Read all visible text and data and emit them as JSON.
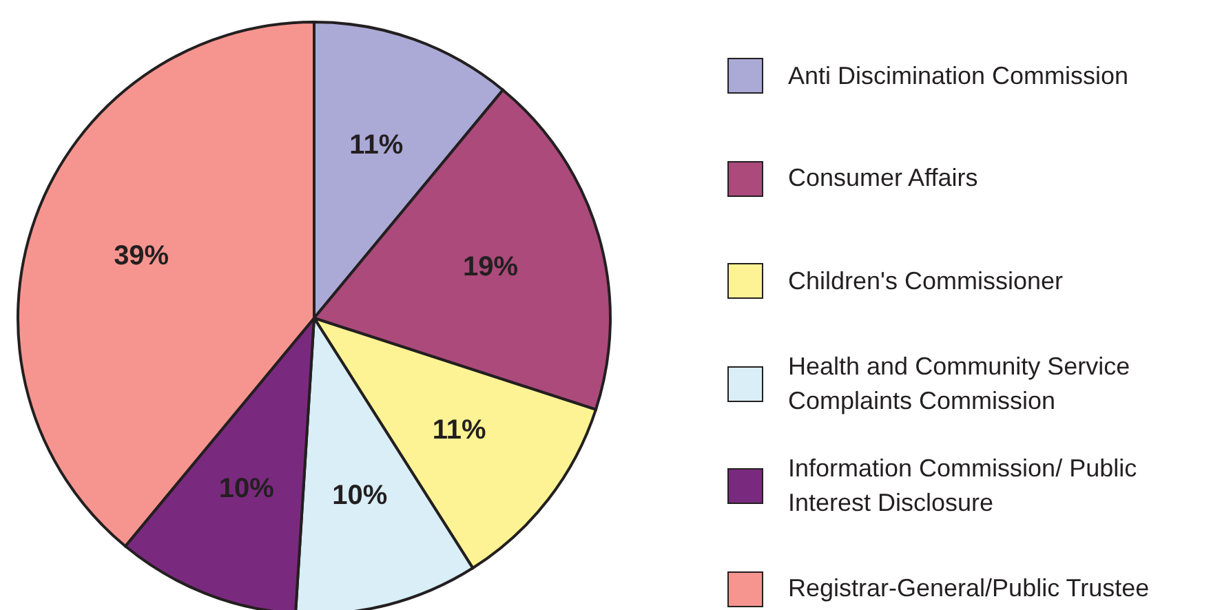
{
  "chart_data": {
    "type": "pie",
    "categories": [
      "Anti Discimination Commission",
      "Consumer Affairs",
      "Children's Commissioner",
      "Health and Community Service Complaints Commission",
      "Information Commission/ Public Interest Disclosure",
      "Registrar-General/Public Trustee"
    ],
    "values": [
      11,
      19,
      11,
      10,
      10,
      39
    ],
    "value_labels": [
      "11%",
      "19%",
      "11%",
      "10%",
      "10%",
      "39%"
    ],
    "colors": [
      "#aba9d6",
      "#ab4a7b",
      "#fdf394",
      "#d9eef6",
      "#7a2a7e",
      "#f6958f"
    ],
    "legend": "right"
  }
}
